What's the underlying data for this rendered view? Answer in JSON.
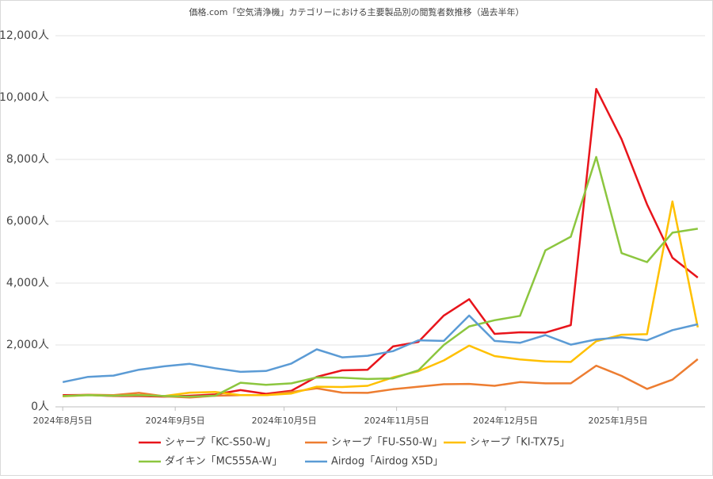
{
  "chart_data": {
    "type": "line",
    "title": "価格.com「空気清浄機」カテゴリーにおける主要製品別の閲覧者数推移（過去半年）",
    "x": [
      "2024-08-05",
      "2024-08-12",
      "2024-08-19",
      "2024-08-26",
      "2024-09-02",
      "2024-09-09",
      "2024-09-16",
      "2024-09-23",
      "2024-09-30",
      "2024-10-07",
      "2024-10-14",
      "2024-10-21",
      "2024-10-28",
      "2024-11-04",
      "2024-11-11",
      "2024-11-18",
      "2024-11-25",
      "2024-12-02",
      "2024-12-09",
      "2024-12-16",
      "2024-12-23",
      "2024-12-30",
      "2025-01-06",
      "2025-01-13",
      "2025-01-20",
      "2025-01-27"
    ],
    "xlim": [
      "2024-08-03",
      "2025-01-29"
    ],
    "xticks": [
      {
        "value": "2024-08-05",
        "label": "2024年8月5日"
      },
      {
        "value": "2024-09-05",
        "label": "2024年9月5日"
      },
      {
        "value": "2024-10-05",
        "label": "2024年10月5日"
      },
      {
        "value": "2024-11-05",
        "label": "2024年11月5日"
      },
      {
        "value": "2024-12-05",
        "label": "2024年12月5日"
      },
      {
        "value": "2025-01-05",
        "label": "2025年1月5日"
      }
    ],
    "ylim": [
      0,
      12000
    ],
    "yticks": [
      {
        "value": 0,
        "label": "0人"
      },
      {
        "value": 2000,
        "label": "2,000人"
      },
      {
        "value": 4000,
        "label": "4,000人"
      },
      {
        "value": 6000,
        "label": "6,000人"
      },
      {
        "value": 8000,
        "label": "8,000人"
      },
      {
        "value": 10000,
        "label": "10,000人"
      },
      {
        "value": 12000,
        "label": "12,000人"
      }
    ],
    "grid": true,
    "legend": "bottom",
    "series": [
      {
        "name": "シャープ「KC-S50-W」",
        "color": "#e8141b",
        "values": [
          380,
          385,
          350,
          350,
          330,
          360,
          400,
          540,
          420,
          520,
          970,
          1180,
          1200,
          1950,
          2100,
          2950,
          3480,
          2360,
          2410,
          2400,
          2640,
          10280,
          8650,
          6550,
          4820,
          4180
        ]
      },
      {
        "name": "シャープ「FU-S50-W」",
        "color": "#ed7d31",
        "values": [
          350,
          390,
          380,
          450,
          340,
          300,
          360,
          380,
          380,
          480,
          600,
          460,
          450,
          570,
          650,
          730,
          740,
          680,
          800,
          760,
          760,
          1330,
          1000,
          580,
          880,
          1540
        ]
      },
      {
        "name": "シャープ「KI-TX75」",
        "color": "#ffc000",
        "values": [
          340,
          380,
          360,
          380,
          350,
          460,
          480,
          380,
          380,
          430,
          650,
          640,
          680,
          950,
          1150,
          1500,
          1980,
          1640,
          1530,
          1470,
          1450,
          2120,
          2330,
          2350,
          6640,
          2570
        ]
      },
      {
        "name": "ダイキン「MC555A-W」",
        "color": "#8cc63f",
        "values": [
          350,
          380,
          360,
          380,
          350,
          330,
          360,
          780,
          710,
          760,
          950,
          940,
          900,
          920,
          1180,
          2000,
          2600,
          2800,
          2940,
          5060,
          5500,
          8080,
          4970,
          4680,
          5630,
          5760
        ]
      },
      {
        "name": "Airdog「Airdog X5D」",
        "color": "#5b9bd5",
        "values": [
          800,
          970,
          1010,
          1200,
          1310,
          1390,
          1250,
          1130,
          1160,
          1400,
          1860,
          1600,
          1650,
          1800,
          2150,
          2130,
          2950,
          2130,
          2070,
          2320,
          2010,
          2180,
          2250,
          2150,
          2480,
          2670
        ]
      }
    ]
  }
}
